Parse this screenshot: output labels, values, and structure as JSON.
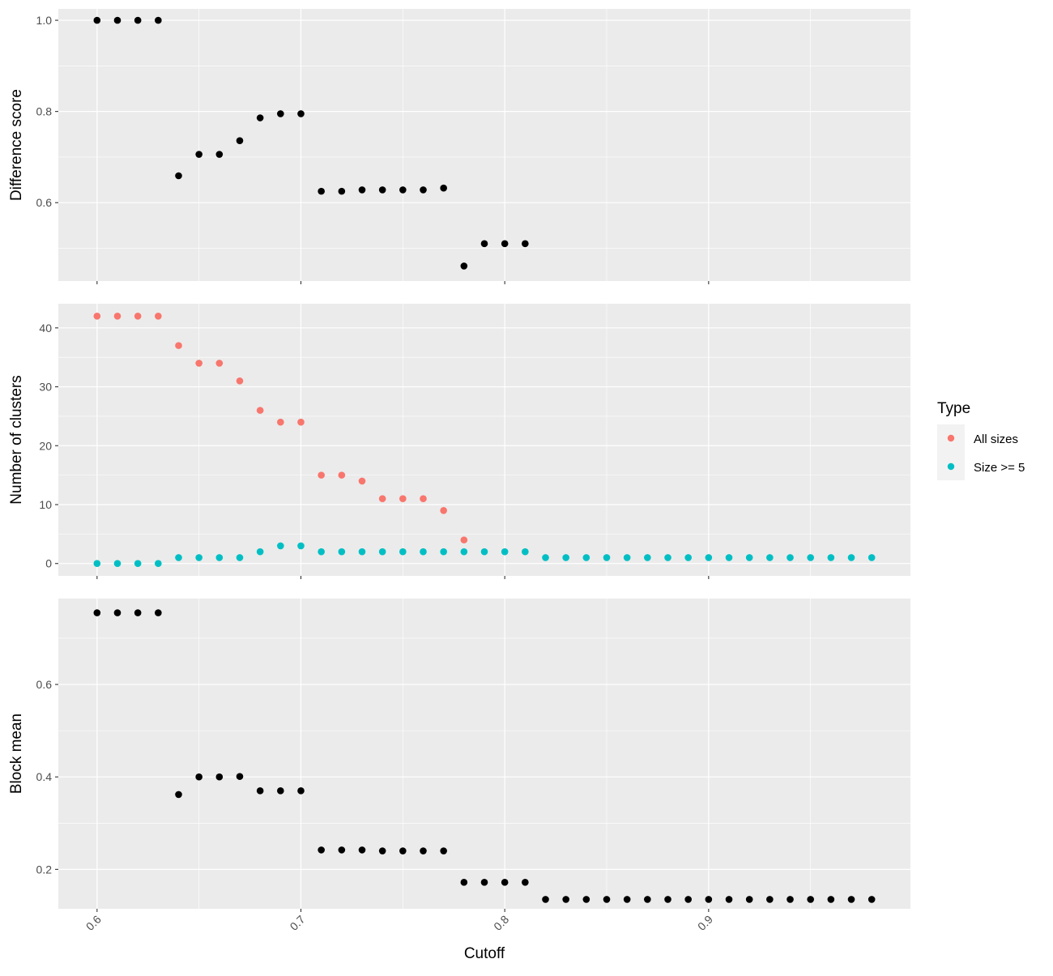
{
  "chart_data": {
    "type": "scatter",
    "xlabel": "Cutoff",
    "x_ticks": [
      "0.6",
      "0.7",
      "0.8",
      "0.9"
    ],
    "x_tick_values": [
      0.6,
      0.7,
      0.8,
      0.9
    ],
    "xlim": [
      0.581,
      0.999
    ],
    "legend": {
      "title": "Type",
      "position": "right",
      "entries": [
        {
          "label": "All sizes",
          "color": "#F8766D"
        },
        {
          "label": "Size >= 5",
          "color": "#00BFC4"
        }
      ]
    },
    "colors": {
      "panel_bg": "#EBEBEB",
      "grid": "#FFFFFF",
      "point": "#000000",
      "all_sizes": "#F8766D",
      "size_ge5": "#00BFC4"
    },
    "panels": [
      {
        "ylabel": "Difference score",
        "y_ticks": [
          "0.6",
          "0.8",
          "1.0"
        ],
        "y_tick_values": [
          0.6,
          0.8,
          1.0
        ],
        "ylim": [
          0.428,
          1.025
        ],
        "series": [
          {
            "color": "#000000",
            "x": [
              0.6,
              0.61,
              0.62,
              0.63,
              0.64,
              0.65,
              0.66,
              0.67,
              0.68,
              0.69,
              0.7,
              0.71,
              0.72,
              0.73,
              0.74,
              0.75,
              0.76,
              0.77,
              0.78,
              0.79,
              0.8,
              0.81
            ],
            "y": [
              1.0,
              1.0,
              1.0,
              1.0,
              0.659,
              0.706,
              0.706,
              0.736,
              0.786,
              0.795,
              0.795,
              0.625,
              0.625,
              0.628,
              0.628,
              0.628,
              0.628,
              0.632,
              0.461,
              0.51,
              0.51,
              0.51
            ]
          }
        ]
      },
      {
        "ylabel": "Number of clusters",
        "y_ticks": [
          "0",
          "10",
          "20",
          "30",
          "40"
        ],
        "y_tick_values": [
          0,
          10,
          20,
          30,
          40
        ],
        "ylim": [
          -2.1,
          44.1
        ],
        "series": [
          {
            "name": "All sizes",
            "color": "#F8766D",
            "x": [
              0.6,
              0.61,
              0.62,
              0.63,
              0.64,
              0.65,
              0.66,
              0.67,
              0.68,
              0.69,
              0.7,
              0.71,
              0.72,
              0.73,
              0.74,
              0.75,
              0.76,
              0.77,
              0.78
            ],
            "y": [
              42,
              42,
              42,
              42,
              37,
              34,
              34,
              31,
              26,
              24,
              24,
              15,
              15,
              14,
              11,
              11,
              11,
              9,
              4
            ]
          },
          {
            "name": "Size >= 5",
            "color": "#00BFC4",
            "x": [
              0.6,
              0.61,
              0.62,
              0.63,
              0.64,
              0.65,
              0.66,
              0.67,
              0.68,
              0.69,
              0.7,
              0.71,
              0.72,
              0.73,
              0.74,
              0.75,
              0.76,
              0.77,
              0.78,
              0.79,
              0.8,
              0.81,
              0.82,
              0.83,
              0.84,
              0.85,
              0.86,
              0.87,
              0.88,
              0.89,
              0.9,
              0.91,
              0.92,
              0.93,
              0.94,
              0.95,
              0.96,
              0.97,
              0.98
            ],
            "y": [
              0,
              0,
              0,
              0,
              1,
              1,
              1,
              1,
              2,
              3,
              3,
              2,
              2,
              2,
              2,
              2,
              2,
              2,
              2,
              2,
              2,
              2,
              1,
              1,
              1,
              1,
              1,
              1,
              1,
              1,
              1,
              1,
              1,
              1,
              1,
              1,
              1,
              1,
              1
            ]
          }
        ]
      },
      {
        "ylabel": "Block mean",
        "y_ticks": [
          "0.2",
          "0.4",
          "0.6"
        ],
        "y_tick_values": [
          0.2,
          0.4,
          0.6
        ],
        "ylim": [
          0.1148,
          0.7858
        ],
        "series": [
          {
            "color": "#000000",
            "x": [
              0.6,
              0.61,
              0.62,
              0.63,
              0.64,
              0.65,
              0.66,
              0.67,
              0.68,
              0.69,
              0.7,
              0.71,
              0.72,
              0.73,
              0.74,
              0.75,
              0.76,
              0.77,
              0.78,
              0.79,
              0.8,
              0.81,
              0.82,
              0.83,
              0.84,
              0.85,
              0.86,
              0.87,
              0.88,
              0.89,
              0.9,
              0.91,
              0.92,
              0.93,
              0.94,
              0.95,
              0.96,
              0.97,
              0.98
            ],
            "y": [
              0.755,
              0.755,
              0.755,
              0.755,
              0.362,
              0.4,
              0.4,
              0.401,
              0.37,
              0.37,
              0.37,
              0.242,
              0.242,
              0.242,
              0.24,
              0.24,
              0.24,
              0.24,
              0.172,
              0.172,
              0.172,
              0.172,
              0.135,
              0.135,
              0.135,
              0.135,
              0.135,
              0.135,
              0.135,
              0.135,
              0.135,
              0.135,
              0.135,
              0.135,
              0.135,
              0.135,
              0.135,
              0.135,
              0.135
            ]
          }
        ]
      }
    ]
  }
}
